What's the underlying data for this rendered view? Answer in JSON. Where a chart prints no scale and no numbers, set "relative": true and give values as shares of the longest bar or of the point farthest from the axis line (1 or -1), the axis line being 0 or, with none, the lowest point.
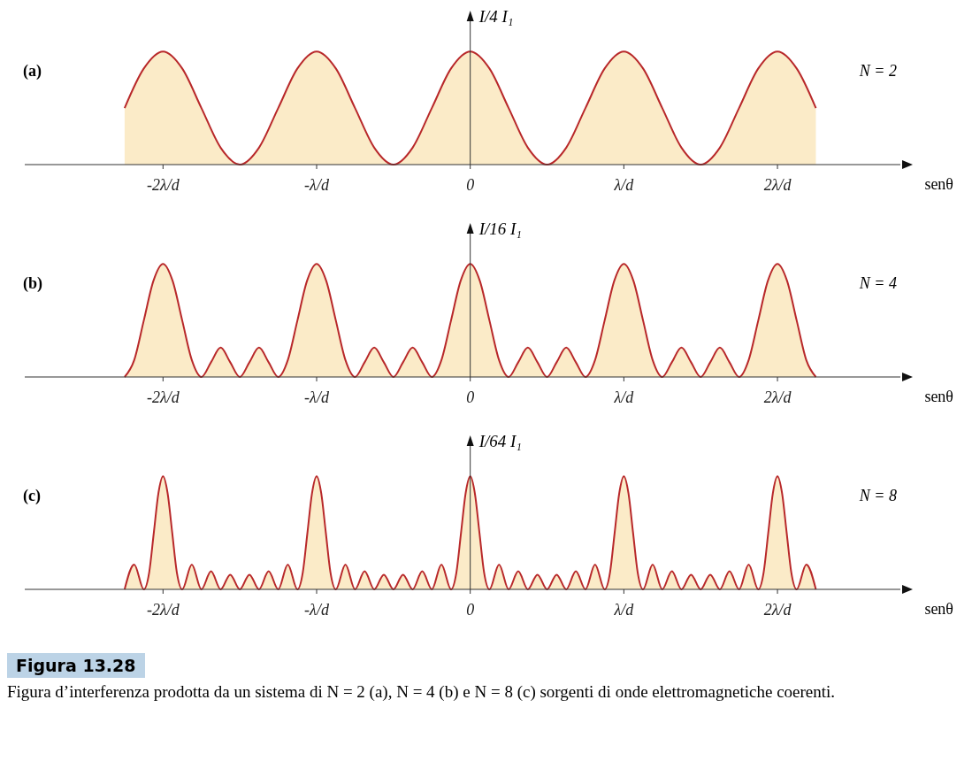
{
  "chart_data": [
    {
      "type": "area",
      "title": "(a)",
      "subtitle": "N = 2",
      "ylabel": "I/4 I₁",
      "xlabel": "senθ",
      "relative": true,
      "color": "#b8282a",
      "xlim": [
        -2.9,
        2.8
      ],
      "xticks": [
        {
          "value": -2,
          "label": "-2λ/d"
        },
        {
          "value": -1,
          "label": "-λ/d"
        },
        {
          "value": 0,
          "label": "0"
        },
        {
          "value": 1,
          "label": "λ/d"
        },
        {
          "value": 2,
          "label": "2λ/d"
        }
      ],
      "x": [
        -2.25,
        -2.125,
        -2,
        -1.875,
        -1.75,
        -1.625,
        -1.5,
        -1.375,
        -1.25,
        -1.125,
        -1,
        -0.875,
        -0.75,
        -0.625,
        -0.5,
        -0.375,
        -0.25,
        -0.125,
        0,
        0.125,
        0.25,
        0.375,
        0.5,
        0.625,
        0.75,
        0.875,
        1,
        1.125,
        1.25,
        1.375,
        1.5,
        1.625,
        1.75,
        1.875,
        2,
        2.125,
        2.25
      ],
      "values": [
        0.5,
        0.85,
        1,
        0.85,
        0.5,
        0.15,
        0,
        0.15,
        0.5,
        0.85,
        1,
        0.85,
        0.5,
        0.15,
        0,
        0.15,
        0.5,
        0.85,
        1,
        0.85,
        0.5,
        0.15,
        0,
        0.15,
        0.5,
        0.85,
        1,
        0.85,
        0.5,
        0.15,
        0,
        0.15,
        0.5,
        0.85,
        1,
        0.85,
        0.5
      ]
    },
    {
      "type": "area",
      "title": "(b)",
      "subtitle": "N = 4",
      "ylabel": "I/16 I₁",
      "xlabel": "senθ",
      "relative": true,
      "color": "#b8282a",
      "xlim": [
        -2.9,
        2.8
      ],
      "xticks": [
        {
          "value": -2,
          "label": "-2λ/d"
        },
        {
          "value": -1,
          "label": "-λ/d"
        },
        {
          "value": 0,
          "label": "0"
        },
        {
          "value": 1,
          "label": "λ/d"
        },
        {
          "value": 2,
          "label": "2λ/d"
        }
      ],
      "x": [
        -2.25,
        -2.1875,
        -2.125,
        -2.0625,
        -2,
        -1.9375,
        -1.875,
        -1.8125,
        -1.75,
        -1.6875,
        -1.625,
        -1.5625,
        -1.5,
        -1.4375,
        -1.375,
        -1.3125,
        -1.25,
        -1.1875,
        -1.125,
        -1.0625,
        -1,
        -0.9375,
        -0.875,
        -0.8125,
        -0.75,
        -0.6875,
        -0.625,
        -0.5625,
        -0.5,
        -0.4375,
        -0.375,
        -0.3125,
        -0.25,
        -0.1875,
        -0.125,
        -0.0625,
        0,
        0.0625,
        0.125,
        0.1875,
        0.25,
        0.3125,
        0.375,
        0.4375,
        0.5,
        0.5625,
        0.625,
        0.6875,
        0.75,
        0.8125,
        0.875,
        0.9375,
        1,
        1.0625,
        1.125,
        1.1875,
        1.25,
        1.3125,
        1.375,
        1.4375,
        1.5,
        1.5625,
        1.625,
        1.6875,
        1.75,
        1.8125,
        1.875,
        1.9375,
        2,
        2.0625,
        2.125,
        2.1875,
        2.25
      ],
      "values": [
        0,
        0.15,
        0.5,
        0.85,
        1,
        0.85,
        0.5,
        0.15,
        0,
        0.13,
        0.26,
        0.13,
        0,
        0.13,
        0.26,
        0.13,
        0,
        0.15,
        0.5,
        0.85,
        1,
        0.85,
        0.5,
        0.15,
        0,
        0.13,
        0.26,
        0.13,
        0,
        0.13,
        0.26,
        0.13,
        0,
        0.15,
        0.5,
        0.85,
        1,
        0.85,
        0.5,
        0.15,
        0,
        0.13,
        0.26,
        0.13,
        0,
        0.13,
        0.26,
        0.13,
        0,
        0.15,
        0.5,
        0.85,
        1,
        0.85,
        0.5,
        0.15,
        0,
        0.13,
        0.26,
        0.13,
        0,
        0.13,
        0.26,
        0.13,
        0,
        0.15,
        0.5,
        0.85,
        1,
        0.85,
        0.5,
        0.15,
        0
      ]
    },
    {
      "type": "area",
      "title": "(c)",
      "subtitle": "N = 8",
      "ylabel": "I/64 I₁",
      "xlabel": "senθ",
      "relative": true,
      "color": "#b8282a",
      "xlim": [
        -2.9,
        2.8
      ],
      "xticks": [
        {
          "value": -2,
          "label": "-2λ/d"
        },
        {
          "value": -1,
          "label": "-λ/d"
        },
        {
          "value": 0,
          "label": "0"
        },
        {
          "value": 1,
          "label": "λ/d"
        },
        {
          "value": 2,
          "label": "2λ/d"
        }
      ],
      "x": [
        -2.25,
        -2.1875,
        -2.125,
        -2.09,
        -2.06,
        -2.03,
        -2,
        -1.97,
        -1.94,
        -1.91,
        -1.875,
        -1.8125,
        -1.75,
        -1.6875,
        -1.625,
        -1.5625,
        -1.5,
        -1.4375,
        -1.375,
        -1.3125,
        -1.25,
        -1.1875,
        -1.125,
        -1.09,
        -1.06,
        -1.03,
        -1,
        -0.97,
        -0.94,
        -0.91,
        -0.875,
        -0.8125,
        -0.75,
        -0.6875,
        -0.625,
        -0.5625,
        -0.5,
        -0.4375,
        -0.375,
        -0.3125,
        -0.25,
        -0.1875,
        -0.125,
        -0.09,
        -0.06,
        -0.03,
        0,
        0.03,
        0.06,
        0.09,
        0.125,
        0.1875,
        0.25,
        0.3125,
        0.375,
        0.4375,
        0.5,
        0.5625,
        0.625,
        0.6875,
        0.75,
        0.8125,
        0.875,
        0.91,
        0.94,
        0.97,
        1,
        1.03,
        1.06,
        1.09,
        1.125,
        1.1875,
        1.25,
        1.3125,
        1.375,
        1.4375,
        1.5,
        1.5625,
        1.625,
        1.6875,
        1.75,
        1.8125,
        1.875,
        1.91,
        1.94,
        1.97,
        2,
        2.03,
        2.06,
        2.09,
        2.125,
        2.1875,
        2.25
      ],
      "values": [
        0,
        0.22,
        0,
        0.15,
        0.5,
        0.85,
        1,
        0.85,
        0.5,
        0.15,
        0,
        0.22,
        0,
        0.16,
        0,
        0.13,
        0,
        0.13,
        0,
        0.16,
        0,
        0.22,
        0,
        0.15,
        0.5,
        0.85,
        1,
        0.85,
        0.5,
        0.15,
        0,
        0.22,
        0,
        0.16,
        0,
        0.13,
        0,
        0.13,
        0,
        0.16,
        0,
        0.22,
        0,
        0.15,
        0.5,
        0.85,
        1,
        0.85,
        0.5,
        0.15,
        0,
        0.22,
        0,
        0.16,
        0,
        0.13,
        0,
        0.13,
        0,
        0.16,
        0,
        0.22,
        0,
        0.15,
        0.5,
        0.85,
        1,
        0.85,
        0.5,
        0.15,
        0,
        0.22,
        0,
        0.16,
        0,
        0.13,
        0,
        0.13,
        0,
        0.16,
        0,
        0.22,
        0,
        0.15,
        0.5,
        0.85,
        1,
        0.85,
        0.5,
        0.15,
        0,
        0.22,
        0
      ],
      "annotations": [
        "Figura 13.28",
        "Figura d’interferenza prodotta da un sistema di N = 2 (a), N = 4 (b) e N = 8 (c) sorgenti di onde elettromagnetiche coerenti."
      ]
    }
  ]
}
